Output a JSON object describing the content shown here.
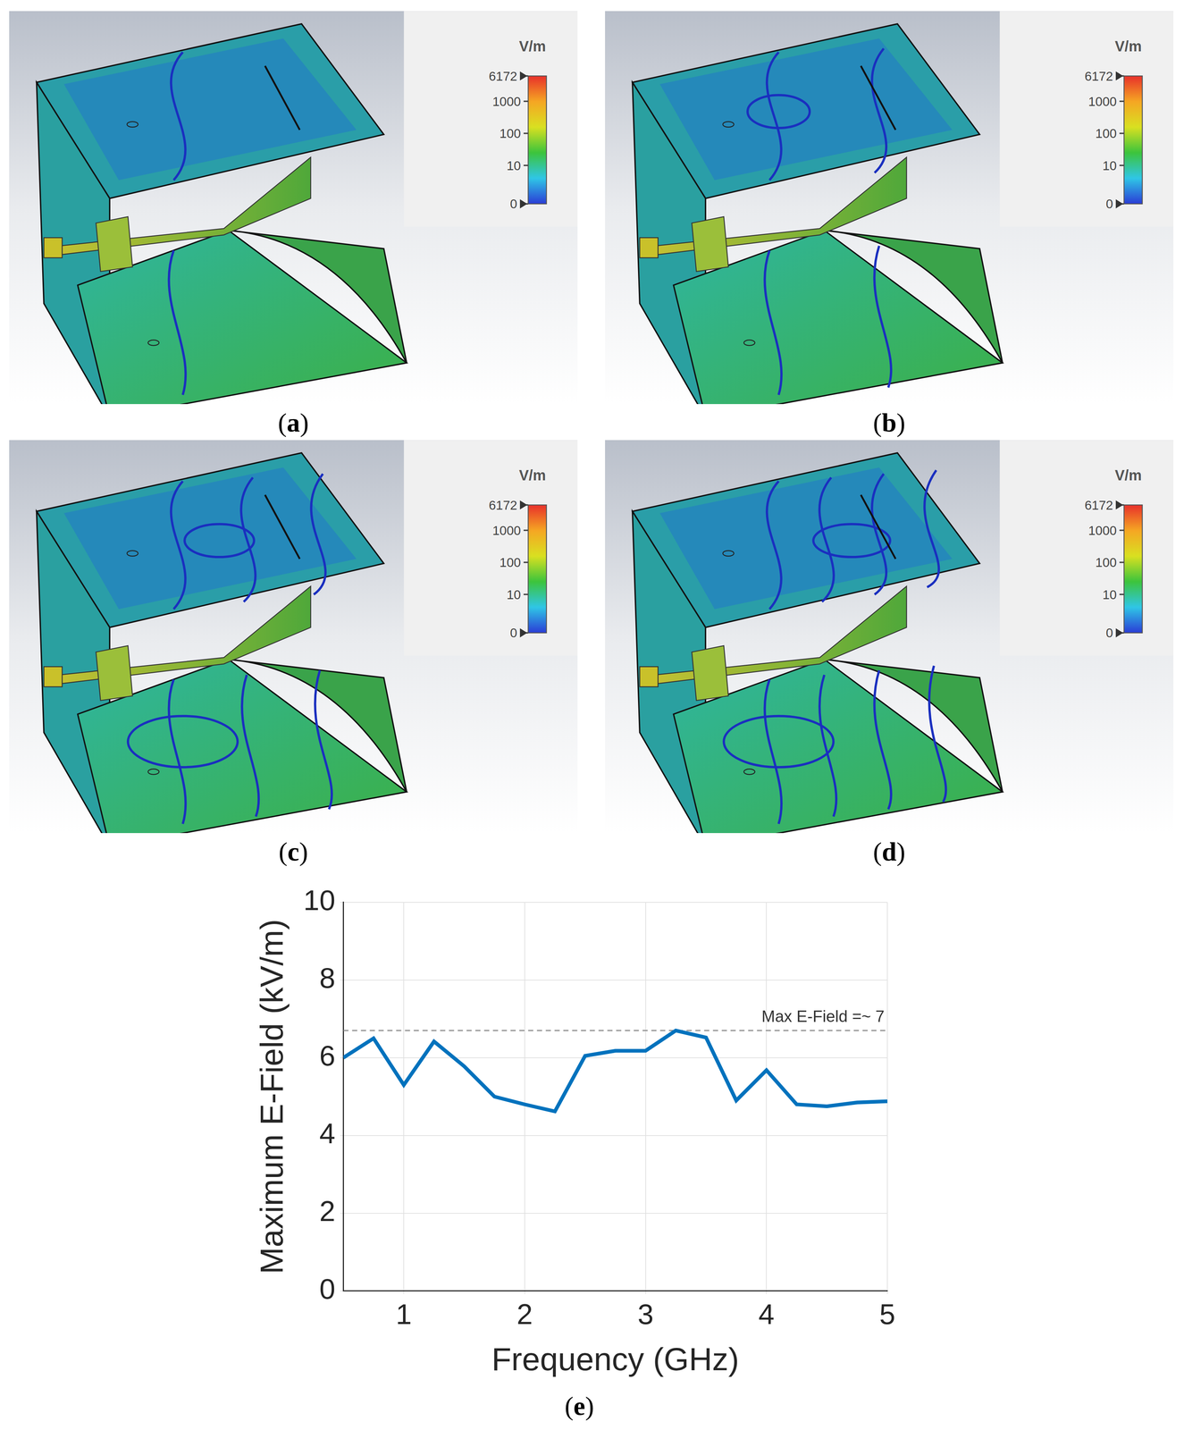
{
  "figure": {
    "panels": [
      {
        "label": "(a)",
        "colorbar": {
          "title": "V/m",
          "range": [
            0,
            6172
          ],
          "ticks": [
            0,
            10,
            100,
            1000,
            6172
          ],
          "log": true
        }
      },
      {
        "label": "(b)",
        "colorbar": {
          "title": "V/m",
          "range": [
            0,
            6172
          ],
          "ticks": [
            0,
            10,
            100,
            1000,
            6172
          ],
          "log": true
        }
      },
      {
        "label": "(c)",
        "colorbar": {
          "title": "V/m",
          "range": [
            0,
            6172
          ],
          "ticks": [
            0,
            10,
            100,
            1000,
            6172
          ],
          "log": true
        }
      },
      {
        "label": "(d)",
        "colorbar": {
          "title": "V/m",
          "range": [
            0,
            6172
          ],
          "ticks": [
            0,
            10,
            100,
            1000,
            6172
          ],
          "log": true
        }
      }
    ],
    "chart_label": "(e)"
  },
  "chart_data": {
    "type": "line",
    "x_label": "Frequency (GHz)",
    "y_label": "Maximum E-Field (kV/m)",
    "x": [
      0.5,
      0.75,
      1.0,
      1.25,
      1.5,
      1.75,
      2.0,
      2.25,
      2.5,
      2.75,
      3.0,
      3.25,
      3.5,
      3.75,
      4.0,
      4.25,
      4.5,
      4.75,
      5.0
    ],
    "values": [
      6.0,
      6.5,
      5.3,
      6.42,
      5.78,
      5.0,
      4.8,
      4.62,
      6.05,
      6.18,
      6.18,
      6.7,
      6.52,
      4.9,
      5.68,
      4.8,
      4.75,
      4.85,
      4.88
    ],
    "color": "#0072bd",
    "xlim": [
      0.5,
      5
    ],
    "xticks": [
      1,
      2,
      3,
      4,
      5
    ],
    "ylim": [
      0,
      10
    ],
    "yticks": [
      0,
      2,
      4,
      6,
      8,
      10
    ],
    "grid": true,
    "annotations": [
      {
        "text": "Max E-Field =~ 7",
        "y": 6.7,
        "line_style": "dashed",
        "color": "#8c8c8c"
      }
    ]
  }
}
